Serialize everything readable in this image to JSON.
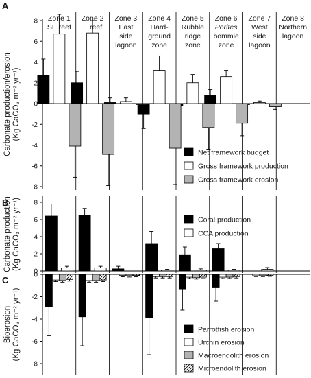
{
  "colors": {
    "net": "#000000",
    "gross_production": "#ffffff",
    "gross_erosion": "#b3b3b3",
    "coral": "#000000",
    "cca": "#ffffff",
    "parrotfish": "#000000",
    "urchin": "#ffffff",
    "macro": "#b3b3b3",
    "micro": "hatch"
  },
  "zones": [
    [
      "Zone 1",
      "SE reef"
    ],
    [
      "Zone 2",
      "E reef"
    ],
    [
      "Zone 3",
      "East",
      "side",
      "lagoon"
    ],
    [
      "Zone 4",
      "Hard-",
      "ground",
      "zone"
    ],
    [
      "Zone 5",
      "Rubble",
      "ridge",
      "zone"
    ],
    [
      "Zone 6",
      "Porites",
      "bommie",
      "zone"
    ],
    [
      "Zone 7",
      "West",
      "side",
      "lagoon"
    ],
    [
      "Zone 8",
      "Northern",
      "lagoon"
    ]
  ],
  "chart_data": [
    {
      "type": "bar",
      "panel": "A",
      "categories": [
        "Zone 1",
        "Zone 2",
        "Zone 3",
        "Zone 4",
        "Zone 5",
        "Zone 6",
        "Zone 7",
        "Zone 8"
      ],
      "ylabel": [
        "Carbonate production/erosion",
        "(Kg CaCO3 m-2 yr-1)"
      ],
      "ylim": [
        -8,
        9
      ],
      "yticks": [
        -8,
        -6,
        -4,
        -2,
        0,
        2,
        4,
        6,
        8
      ],
      "legend_position": "bottom-right",
      "series": [
        {
          "name": "Net framework budget",
          "color_key": "net",
          "values": [
            2.7,
            2.0,
            0.1,
            -1.0,
            -0.2,
            0.8,
            -0.1,
            null
          ],
          "errors": [
            1.6,
            1.1,
            0.45,
            1.4,
            1.0,
            0.55,
            0.15,
            null
          ]
        },
        {
          "name": "Gross framework production",
          "color_key": "gross_production",
          "values": [
            6.7,
            6.8,
            0.2,
            3.2,
            2.0,
            2.6,
            0.1,
            null
          ],
          "errors": [
            1.9,
            1.2,
            0.35,
            1.4,
            0.8,
            0.6,
            0.15,
            null
          ]
        },
        {
          "name": "Gross framework erosion",
          "color_key": "gross_erosion",
          "values": [
            -4.1,
            -4.9,
            -0.1,
            -4.3,
            -2.3,
            -1.9,
            -0.3,
            null
          ],
          "errors": [
            3.0,
            3.0,
            0.2,
            3.5,
            2.1,
            1.2,
            0.25,
            null
          ]
        }
      ]
    },
    {
      "type": "bar",
      "panel": "B",
      "categories": [
        "Zone 1",
        "Zone 2",
        "Zone 3",
        "Zone 4",
        "Zone 5",
        "Zone 6",
        "Zone 7",
        "Zone 8"
      ],
      "ylabel": [
        "Carbonate production",
        "(Kg CaCO3 m-2 yr-1)"
      ],
      "ylim": [
        0,
        8.5
      ],
      "yticks": [
        0,
        2,
        4,
        6,
        8
      ],
      "legend_position": "top-right",
      "series": [
        {
          "name": "Coral production",
          "color_key": "coral",
          "values": [
            6.4,
            6.5,
            0.25,
            3.2,
            1.9,
            2.6,
            null,
            null
          ],
          "errors": [
            1.4,
            0.8,
            0.3,
            1.4,
            0.9,
            0.6,
            null,
            null
          ]
        },
        {
          "name": "CCA production",
          "color_key": "cca",
          "values": [
            0.35,
            0.35,
            null,
            0.1,
            0.1,
            0.1,
            0.2,
            null
          ],
          "errors": [
            0.2,
            0.2,
            null,
            0.1,
            0.15,
            0.1,
            0.2,
            null
          ]
        }
      ]
    },
    {
      "type": "bar",
      "panel": "C",
      "categories": [
        "Zone 1",
        "Zone 2",
        "Zone 3",
        "Zone 4",
        "Zone 5",
        "Zone 6",
        "Zone 7",
        "Zone 8"
      ],
      "ylabel": [
        "Bioerosion",
        "(Kg CaCO3 m-2 yr-1)"
      ],
      "ylim": [
        -8.5,
        0.5
      ],
      "yticks": [
        -8,
        -6,
        -4,
        -2,
        0
      ],
      "legend_position": "bottom-right",
      "series": [
        {
          "name": "Parrotfish erosion",
          "color_key": "parrotfish",
          "values": [
            -2.9,
            -3.8,
            null,
            -3.9,
            -1.3,
            -1.2,
            null,
            null
          ],
          "errors": [
            2.6,
            2.6,
            null,
            3.3,
            1.9,
            1.2,
            null,
            null
          ]
        },
        {
          "name": "Urchin erosion",
          "color_key": "urchin",
          "values": [
            -0.5,
            -0.55,
            -0.1,
            -0.2,
            -0.25,
            -0.25,
            -0.12,
            null
          ],
          "errors": [
            0.15,
            0.15,
            0.12,
            0.12,
            0.12,
            0.12,
            0.08,
            null
          ]
        },
        {
          "name": "Macroendolith erosion",
          "color_key": "macro",
          "values": [
            -0.55,
            -0.55,
            -0.12,
            -0.2,
            -0.3,
            -0.25,
            -0.12,
            null
          ],
          "errors": [
            0.15,
            0.15,
            0.12,
            0.12,
            0.12,
            0.12,
            0.08,
            null
          ]
        },
        {
          "name": "Microendolith erosion",
          "color_key": "micro",
          "values": [
            -0.45,
            -0.5,
            -0.1,
            -0.2,
            -0.25,
            -0.2,
            -0.1,
            null
          ],
          "errors": [
            0.15,
            0.15,
            0.12,
            0.12,
            0.12,
            0.12,
            0.08,
            null
          ]
        }
      ]
    }
  ]
}
